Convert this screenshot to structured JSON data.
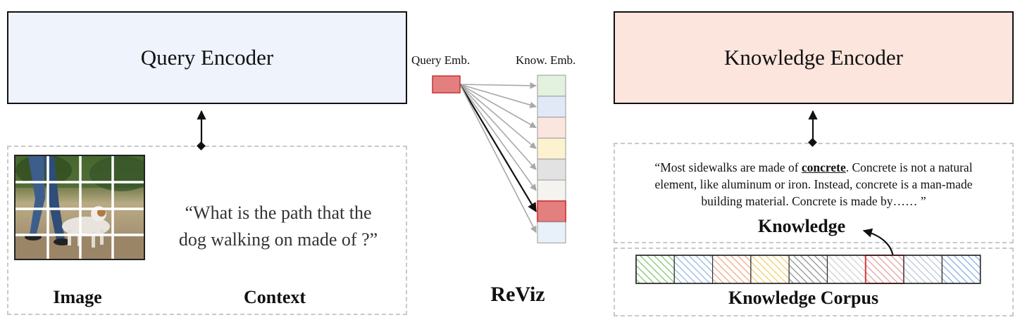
{
  "query_encoder": {
    "label": "Query Encoder",
    "fill": "#eef3fc"
  },
  "knowledge_encoder": {
    "label": "Knowledge Encoder",
    "fill": "#fbe5dd"
  },
  "input": {
    "image_label": "Image",
    "context_label": "Context",
    "context_quote_line1": "“What is the path that the",
    "context_quote_line2": "dog walking on made of ?”"
  },
  "reviz": {
    "title": "ReViz",
    "query_emb_label": "Query Emb.",
    "know_emb_label": "Know. Emb.",
    "query_emb_color": "#e37f7f",
    "highlight_color": "#e37f7f",
    "embedding_cells": [
      "#e3f1df",
      "#e1e9f6",
      "#fbe6df",
      "#fdf2cf",
      "#e2e2e2",
      "#f5f3ef",
      "#e37f7f",
      "#e8f0fa"
    ],
    "highlighted_index": 6
  },
  "knowledge": {
    "label": "Knowledge",
    "line1_pre": "“Most sidewalks are made of ",
    "line1_em": "concrete",
    "line1_post": ". Concrete is not a natural",
    "line2": "element, like aluminum or iron. Instead, concrete is a man-made",
    "line3": "building material. Concrete is made by…… ”"
  },
  "corpus": {
    "label": "Knowledge Corpus",
    "items": [
      {
        "color": "#7cc069",
        "border": "#3c8d2e"
      },
      {
        "color": "#8fb3dd",
        "border": "#4f7fb8"
      },
      {
        "color": "#f0a27c",
        "border": "#d27a4b"
      },
      {
        "color": "#f3cc5c",
        "border": "#d9a82a"
      },
      {
        "color": "#8a8a8a",
        "border": "#5a5a5a"
      },
      {
        "color": "#cfcfcf",
        "border": "#9e9e9e"
      },
      {
        "color": "#e39a9a",
        "border": "#d33a3a"
      },
      {
        "color": "#b8c3d6",
        "border": "#7f8ca5"
      },
      {
        "color": "#7fa9dc",
        "border": "#3f6fb0"
      }
    ],
    "selected_index": 6
  }
}
